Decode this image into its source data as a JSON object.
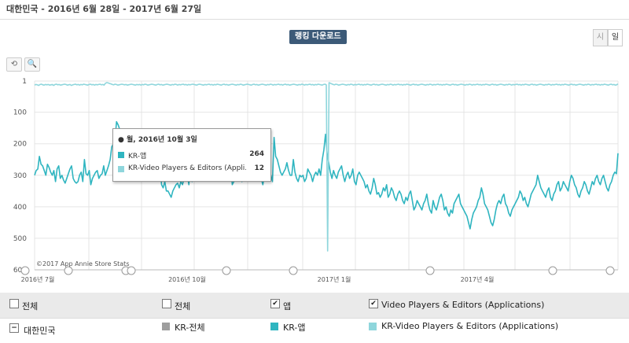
{
  "header": {
    "title": "대한민국 - 2016년 6월 28일 - 2017년 6월 27일",
    "mode_button": "랭킹 다운로드",
    "toggle_hour": "시",
    "toggle_day": "일"
  },
  "toolbar": {
    "reset_icon": "undo-icon",
    "zoom_icon": "magnifier-zoom-icon"
  },
  "colors": {
    "app": "#2fb5c0",
    "video": "#8fd6dc",
    "grid": "#e5e5e5",
    "total": "#9e9e9e"
  },
  "chart_data": {
    "type": "line",
    "y_axis": {
      "reversed": true,
      "min": 1,
      "max": 600,
      "ticks": [
        "1",
        "100",
        "200",
        "300",
        "400",
        "500",
        "600"
      ]
    },
    "x_axis": {
      "ticks": [
        "2016년 7월",
        "2016년 10월",
        "2017년 1월",
        "2017년 4월"
      ]
    },
    "watermark": "©2017 App Annie Store Stats",
    "series": [
      {
        "name": "KR-앱",
        "values": [
          300,
          285,
          280,
          240,
          265,
          270,
          285,
          300,
          265,
          275,
          290,
          300,
          285,
          320,
          280,
          270,
          310,
          300,
          315,
          325,
          310,
          295,
          280,
          270,
          310,
          320,
          325,
          320,
          300,
          290,
          320,
          250,
          295,
          300,
          285,
          330,
          310,
          300,
          290,
          285,
          310,
          300,
          295,
          270,
          300,
          285,
          270,
          250,
          210,
          200,
          190,
          130,
          140,
          155,
          180,
          200,
          175,
          165,
          190,
          180,
          195,
          220,
          210,
          230,
          190,
          200,
          215,
          190,
          270,
          200,
          220,
          230,
          240,
          260,
          250,
          264,
          200,
          180,
          260,
          330,
          340,
          320,
          350,
          350,
          360,
          370,
          350,
          340,
          330,
          325,
          340,
          320,
          330,
          310,
          300,
          295,
          330,
          270,
          320,
          300,
          290,
          300,
          290,
          310,
          280,
          290,
          305,
          295,
          310,
          280,
          290,
          300,
          270,
          290,
          200,
          230,
          250,
          260,
          290,
          280,
          240,
          210,
          260,
          330,
          320,
          310,
          290,
          300,
          310,
          320,
          300,
          290,
          310,
          305,
          260,
          300,
          270,
          280,
          290,
          300,
          290,
          310,
          330,
          300,
          295,
          310,
          290,
          300,
          320,
          180,
          240,
          250,
          270,
          290,
          300,
          290,
          280,
          260,
          285,
          300,
          300,
          250,
          290,
          310,
          320,
          300,
          305,
          300,
          320,
          310,
          280,
          290,
          300,
          320,
          300,
          290,
          300,
          280,
          300,
          250,
          220,
          170,
          230,
          260,
          290,
          310,
          285,
          300,
          310,
          290,
          280,
          270,
          300,
          320,
          300,
          290,
          310,
          300,
          280,
          320,
          330,
          300,
          290,
          300,
          310,
          320,
          340,
          330,
          350,
          360,
          340,
          310,
          330,
          360,
          355,
          370,
          360,
          340,
          350,
          330,
          370,
          360,
          340,
          350,
          370,
          380,
          360,
          350,
          360,
          380,
          390,
          370,
          380,
          360,
          350,
          380,
          410,
          400,
          380,
          390,
          400,
          410,
          390,
          380,
          360,
          390,
          410,
          420,
          380,
          400,
          410,
          390,
          370,
          360,
          380,
          410,
          400,
          420,
          430,
          410,
          420,
          390,
          380,
          370,
          360,
          390,
          400,
          410,
          420,
          430,
          450,
          470,
          440,
          420,
          410,
          400,
          380,
          370,
          340,
          360,
          390,
          400,
          410,
          430,
          450,
          460,
          440,
          410,
          390,
          380,
          390,
          370,
          360,
          390,
          400,
          420,
          430,
          410,
          400,
          390,
          380,
          370,
          350,
          360,
          380,
          370,
          390,
          400,
          380,
          360,
          350,
          340,
          330,
          300,
          320,
          340,
          350,
          360,
          370,
          350,
          340,
          370,
          380,
          360,
          350,
          330,
          320,
          350,
          340,
          320,
          330,
          340,
          350,
          320,
          300,
          310,
          330,
          340,
          360,
          370,
          350,
          340,
          320,
          330,
          350,
          360,
          340,
          320,
          330,
          310,
          300,
          320,
          330,
          310,
          300,
          320,
          340,
          350,
          330,
          320,
          300,
          290,
          295,
          230
        ],
        "marker_value": 264
      },
      {
        "name": "KR-Video Players & Editors (Applications)",
        "values": [
          14,
          12,
          13,
          15,
          12,
          11,
          13,
          14,
          12,
          13,
          12,
          14,
          13,
          12,
          15,
          12,
          11,
          13,
          12,
          14,
          13,
          12,
          11,
          12,
          14,
          13,
          12,
          15,
          13,
          12,
          11,
          13,
          12,
          14,
          12,
          13,
          11,
          12,
          13,
          14,
          12,
          11,
          13,
          12,
          14,
          12,
          13,
          12,
          11,
          13,
          12,
          14,
          8,
          6,
          7,
          9,
          10,
          12,
          13,
          11,
          12,
          14,
          13,
          12,
          11,
          12,
          13,
          12,
          14,
          13,
          12,
          11,
          12,
          13,
          14,
          12,
          13,
          12,
          14,
          12,
          13,
          11,
          12,
          14,
          13,
          12,
          11,
          12,
          13,
          14,
          12,
          11,
          13,
          12,
          14,
          13,
          12,
          11,
          12,
          13,
          14,
          12,
          13,
          11,
          12,
          14,
          12,
          13,
          12,
          11,
          13,
          12,
          14,
          12,
          13,
          12,
          11,
          12,
          13,
          14,
          12,
          11,
          12,
          13,
          14,
          12,
          13,
          12,
          11,
          13,
          12,
          14,
          12,
          13,
          11,
          12,
          13,
          14,
          12,
          11,
          13,
          12,
          14,
          13,
          12,
          11,
          12,
          13,
          14,
          12,
          13,
          11,
          12,
          14,
          13,
          12,
          11,
          12,
          13,
          14,
          12,
          11,
          13,
          12,
          14,
          13,
          12,
          11,
          12,
          13,
          14,
          12,
          13,
          11,
          12,
          14,
          12,
          13,
          12,
          11,
          13,
          12,
          14,
          12,
          11,
          13,
          12,
          14,
          13,
          12,
          11,
          12,
          13,
          14,
          12,
          13,
          11,
          12,
          14,
          12,
          13,
          12,
          11,
          13,
          12,
          14,
          12,
          13,
          11,
          12,
          13,
          14,
          12,
          11,
          13,
          540,
          6,
          8,
          10,
          12,
          13,
          11,
          12,
          14,
          13,
          12,
          11,
          12,
          13,
          14,
          12,
          13,
          11,
          12,
          14,
          12,
          13,
          12,
          11,
          13,
          12,
          14,
          12,
          13,
          11,
          12,
          13,
          14,
          12,
          11,
          13,
          12,
          14,
          13,
          12,
          11,
          12,
          13,
          14,
          12,
          13,
          11,
          12,
          14,
          12,
          13,
          12,
          11,
          13,
          12,
          14,
          12,
          13,
          11,
          12,
          13,
          14,
          12,
          11,
          13,
          12,
          14,
          13,
          12,
          11,
          12,
          13,
          14,
          12,
          13,
          11,
          12,
          14,
          12,
          13,
          12,
          11,
          13,
          12,
          14,
          12,
          13,
          11,
          12,
          13,
          14,
          12,
          11,
          13,
          12,
          14,
          13,
          12,
          11,
          12,
          13,
          14,
          12,
          13,
          11,
          12,
          14,
          12,
          13,
          12,
          11,
          13,
          12,
          14,
          12,
          13,
          11,
          12,
          13,
          14,
          12,
          11,
          13,
          12,
          14,
          13,
          12,
          11,
          12,
          13,
          14,
          12,
          13,
          11,
          12,
          14,
          12,
          13,
          12,
          11,
          13,
          12,
          14,
          12,
          13,
          11,
          12,
          13,
          14,
          12,
          11,
          13,
          12,
          14,
          13,
          12,
          11,
          12,
          13,
          14,
          12,
          13,
          11,
          12,
          14,
          12,
          13,
          12,
          11,
          13,
          12,
          14,
          12,
          13,
          11,
          12,
          13,
          14,
          12,
          11,
          13,
          12,
          14,
          13,
          12,
          11,
          12,
          13,
          14,
          12,
          13,
          11,
          12,
          14,
          12,
          13,
          12,
          11,
          13,
          12,
          14,
          12,
          13,
          11,
          12,
          13,
          14,
          12,
          11,
          13,
          12,
          14,
          13,
          10
        ],
        "marker_value": 12
      }
    ],
    "tooltip": {
      "header": "월, 2016년 10월 3일",
      "rows": [
        {
          "label": "KR-앱",
          "value": "264"
        },
        {
          "label": "KR-Video Players & Editors (Appli…",
          "value": "12"
        }
      ]
    }
  },
  "legend": {
    "header": [
      {
        "label": "전체",
        "checked": false
      },
      {
        "label": "전체",
        "checked": false
      },
      {
        "label": "앱",
        "checked": true
      },
      {
        "label": "Video Players & Editors (Applications)",
        "checked": true
      }
    ],
    "row_label": "대한민국",
    "items": [
      {
        "label": "KR-전체"
      },
      {
        "label": "KR-앱"
      },
      {
        "label": "KR-Video Players & Editors (Applications)"
      }
    ]
  }
}
